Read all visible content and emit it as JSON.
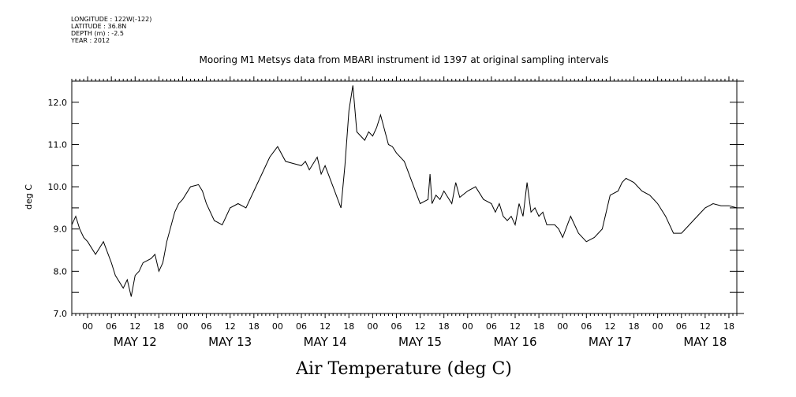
{
  "header": {
    "lines": [
      "LONGITUDE : 122W(-122)",
      "LATITUDE : 36.8N",
      "DEPTH (m) : -2.5",
      "YEAR : 2012"
    ]
  },
  "chart_data": {
    "type": "line",
    "title": "Mooring M1 Metsys data from MBARI instrument id 1397 at original sampling intervals",
    "xlabel": "Air Temperature (deg C)",
    "ylabel": "deg C",
    "ylim": [
      7.0,
      12.5
    ],
    "xlim_hours": [
      -4,
      164
    ],
    "y_ticks": [
      "7.0",
      "8.0",
      "9.0",
      "10.0",
      "11.0",
      "12.0"
    ],
    "x_hour_labels": [
      "00",
      "06",
      "12",
      "18",
      "00",
      "06",
      "12",
      "18",
      "00",
      "06",
      "12",
      "18",
      "00",
      "06",
      "12",
      "18",
      "00",
      "06",
      "12",
      "18",
      "00",
      "06",
      "12",
      "18",
      "00",
      "06",
      "12",
      "18"
    ],
    "day_labels": [
      "MAY 12",
      "MAY 13",
      "MAY 14",
      "MAY 15",
      "MAY 16",
      "MAY 17",
      "MAY 18"
    ],
    "series": [
      {
        "x": [
          -4,
          -3,
          -2,
          -1,
          0,
          2,
          4,
          6,
          7,
          9,
          10,
          11,
          12,
          13,
          14,
          16,
          17,
          18,
          19,
          20,
          22,
          23,
          24,
          26,
          28,
          29,
          30,
          32,
          34,
          36,
          38,
          40,
          42,
          44,
          46,
          48,
          50,
          52,
          54,
          55,
          56,
          58,
          59,
          60,
          62,
          64,
          65,
          66,
          67,
          68,
          70,
          71,
          72,
          73,
          74,
          76,
          77,
          78,
          80,
          82,
          84,
          86,
          86.5,
          87,
          88,
          89,
          90,
          92,
          93,
          94,
          96,
          98,
          100,
          102,
          103,
          104,
          105,
          106,
          107,
          108,
          109,
          110,
          111,
          112,
          113,
          114,
          115,
          116,
          118,
          119,
          120,
          122,
          124,
          126,
          128,
          130,
          132,
          134,
          135,
          136,
          138,
          140,
          142,
          144,
          146,
          148,
          150,
          152,
          154,
          156,
          158,
          160,
          162,
          164
        ],
        "y": [
          9.1,
          9.3,
          9.0,
          8.8,
          8.7,
          8.4,
          8.7,
          8.2,
          7.9,
          7.6,
          7.8,
          7.4,
          7.9,
          8.0,
          8.2,
          8.3,
          8.4,
          8.0,
          8.2,
          8.7,
          9.4,
          9.6,
          9.7,
          10.0,
          10.05,
          9.9,
          9.6,
          9.2,
          9.1,
          9.5,
          9.6,
          9.5,
          9.9,
          10.3,
          10.7,
          10.95,
          10.6,
          10.55,
          10.5,
          10.6,
          10.4,
          10.7,
          10.3,
          10.5,
          10.0,
          9.5,
          10.5,
          11.8,
          12.4,
          11.3,
          11.1,
          11.3,
          11.2,
          11.4,
          11.7,
          11.0,
          10.95,
          10.8,
          10.6,
          10.1,
          9.6,
          9.7,
          10.3,
          9.6,
          9.8,
          9.7,
          9.9,
          9.6,
          10.1,
          9.75,
          9.9,
          10.0,
          9.7,
          9.6,
          9.4,
          9.6,
          9.3,
          9.2,
          9.3,
          9.1,
          9.6,
          9.3,
          10.1,
          9.4,
          9.5,
          9.3,
          9.4,
          9.1,
          9.1,
          9.0,
          8.8,
          9.3,
          8.9,
          8.7,
          8.8,
          9.0,
          9.8,
          9.9,
          10.1,
          10.2,
          10.1,
          9.9,
          9.8,
          9.6,
          9.3,
          8.9,
          8.9,
          9.1,
          9.3,
          9.5,
          9.6,
          9.55,
          9.55,
          9.5
        ]
      }
    ]
  }
}
